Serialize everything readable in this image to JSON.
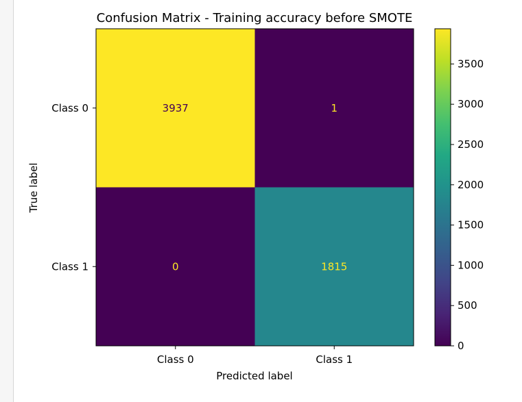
{
  "chart_data": {
    "type": "heatmap",
    "title": "Confusion Matrix - Training  accuracy before SMOTE",
    "xlabel": "Predicted label",
    "ylabel": "True label",
    "x_categories": [
      "Class 0",
      "Class 1"
    ],
    "y_categories": [
      "Class 0",
      "Class 1"
    ],
    "values": [
      [
        3937,
        1
      ],
      [
        0,
        1815
      ]
    ],
    "colormap": "viridis",
    "colorbar": {
      "range": [
        0,
        3937
      ],
      "ticks": [
        0,
        500,
        1000,
        1500,
        2000,
        2500,
        3000,
        3500
      ]
    },
    "colors": {
      "high_cell": "#fde725",
      "low_cell": "#440154",
      "mid_cell": "#23898e",
      "text_on_dark": "#fde725",
      "text_on_light": "#440154"
    }
  }
}
